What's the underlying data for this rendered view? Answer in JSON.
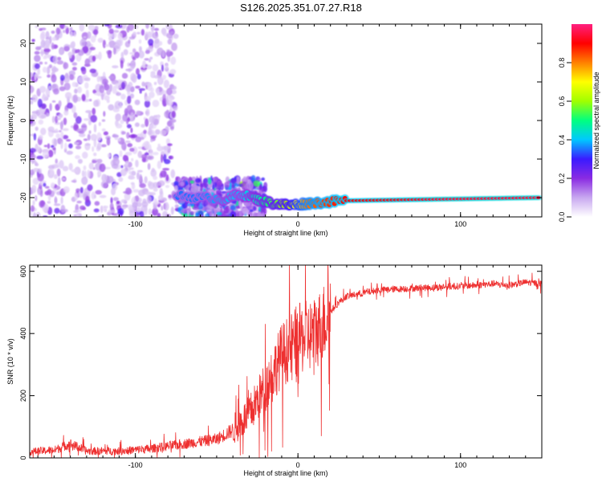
{
  "figure_title": "S126.2025.351.07.27.R18",
  "chart_data": [
    {
      "type": "heatmap",
      "xlabel": "Height of straight line (km)",
      "ylabel": "Frequency (Hz)",
      "xlim": [
        -165,
        150
      ],
      "ylim": [
        -25,
        25
      ],
      "x_ticks": [
        -100,
        0,
        100
      ],
      "x_tick_labels": [
        "-100",
        "0",
        "100"
      ],
      "y_ticks": [
        -20,
        -10,
        0,
        10,
        20
      ],
      "y_tick_labels": [
        "-20",
        "-10",
        "0",
        "10",
        "20"
      ],
      "colorbar": {
        "label": "Normalized spectral amplitude",
        "range": [
          0,
          1
        ],
        "ticks": [
          0,
          0.2,
          0.4,
          0.6,
          0.8
        ],
        "tick_labels": [
          "0.0",
          "0.2",
          "0.4",
          "0.6",
          "0.8"
        ],
        "colors": [
          "#ffffff",
          "#c8a8f0",
          "#8a2be2",
          "#3a1aff",
          "#00c8ff",
          "#00ff80",
          "#a0ff00",
          "#ffff00",
          "#ff8000",
          "#ff0000",
          "#ff2080"
        ]
      },
      "features": [
        {
          "name": "noise",
          "x_range": [
            -165,
            -75
          ],
          "freq_range": [
            -25,
            25
          ],
          "amplitude": 0.15
        },
        {
          "name": "noise",
          "x_range": [
            -75,
            -20
          ],
          "freq_range": [
            -25,
            -15
          ],
          "amplitude": 0.3
        },
        {
          "name": "carrier",
          "x": [
            -75,
            -60,
            -45,
            -35,
            -25,
            -15,
            -5,
            5,
            15,
            30,
            60,
            90,
            120,
            150
          ],
          "freq": [
            -19.5,
            -20,
            -20.5,
            -19,
            -20.5,
            -21.5,
            -22,
            -21.5,
            -21.2,
            -20.8,
            -20.6,
            -20.4,
            -20.2,
            -20.0
          ],
          "amplitude": [
            0.35,
            0.35,
            0.4,
            0.4,
            0.45,
            0.55,
            0.65,
            0.8,
            0.85,
            0.9,
            0.92,
            0.95,
            0.95,
            0.95
          ]
        }
      ]
    },
    {
      "type": "line",
      "xlabel": "Height of straight line (km)",
      "ylabel": "SNR (10 * v/v)",
      "xlim": [
        -165,
        150
      ],
      "ylim": [
        0,
        620
      ],
      "x_ticks": [
        -100,
        0,
        100
      ],
      "x_tick_labels": [
        "-100",
        "0",
        "100"
      ],
      "y_ticks": [
        0,
        200,
        400,
        600
      ],
      "y_tick_labels": [
        "0",
        "200",
        "400",
        "600"
      ],
      "color": "#ee3030",
      "x": [
        -165,
        -150,
        -140,
        -130,
        -110,
        -90,
        -70,
        -50,
        -40,
        -30,
        -20,
        -10,
        0,
        10,
        15,
        20,
        25,
        30,
        50,
        70,
        90,
        110,
        120,
        130,
        140,
        150
      ],
      "y": [
        20,
        25,
        45,
        22,
        22,
        30,
        45,
        60,
        90,
        140,
        230,
        330,
        380,
        400,
        430,
        470,
        500,
        520,
        540,
        545,
        550,
        555,
        560,
        555,
        565,
        560
      ]
    }
  ]
}
